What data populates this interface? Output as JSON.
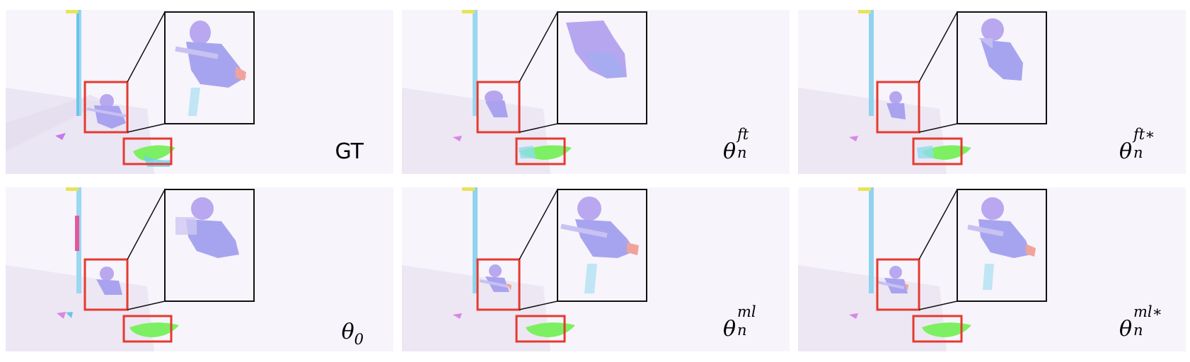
{
  "panels": [
    {
      "label": "GT"
    },
    {
      "symbol": "θ",
      "subscript": "n",
      "superscript": "ft"
    },
    {
      "symbol": "θ",
      "subscript": "n",
      "superscript": "ft∗"
    },
    {
      "symbol": "θ",
      "subscript": "0"
    },
    {
      "symbol": "θ",
      "subscript": "n",
      "superscript": "ml"
    },
    {
      "symbol": "θ",
      "subscript": "n",
      "superscript": "ml∗"
    }
  ],
  "colors": {
    "background": "#f6f3fb",
    "highlight_box": "#e53a2f",
    "zoom_box": "#111111",
    "person": "#a9a2ef",
    "plant": "#7cf062",
    "pole": "#8fd3ee"
  }
}
